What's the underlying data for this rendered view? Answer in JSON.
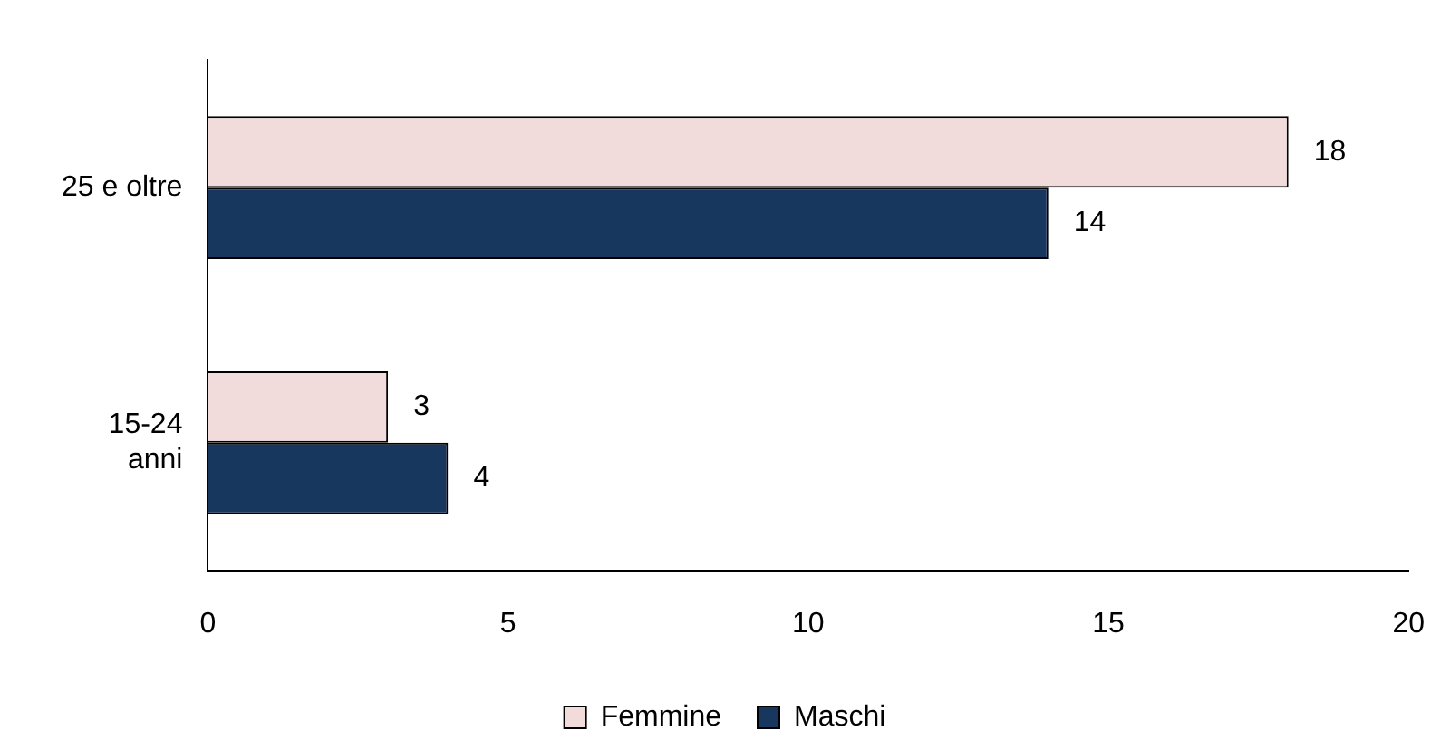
{
  "chart_data": {
    "type": "bar",
    "orientation": "horizontal",
    "categories": [
      "25 e oltre",
      "15-24\nanni"
    ],
    "series": [
      {
        "name": "Femmine",
        "color": "#f2dcdb",
        "values": [
          18,
          3
        ]
      },
      {
        "name": "Maschi",
        "color": "#17375e",
        "values": [
          14,
          4
        ]
      }
    ],
    "xlim": [
      0,
      20
    ],
    "xticks": [
      0,
      5,
      10,
      15,
      20
    ],
    "grid": false,
    "legend": "bottom",
    "data_labels": true
  }
}
